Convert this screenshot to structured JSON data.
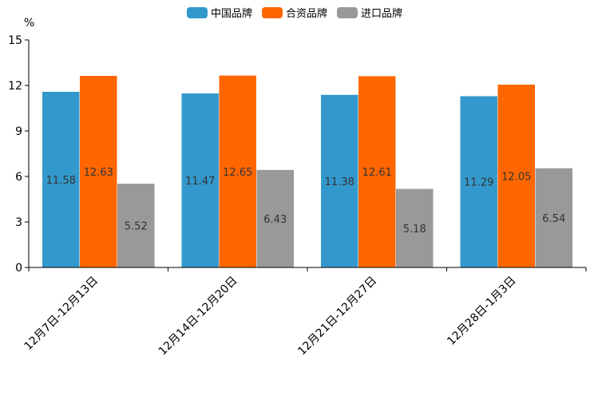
{
  "chart_data": {
    "type": "bar",
    "title": "",
    "xlabel": "",
    "ylabel": "%",
    "ylim": [
      0,
      15
    ],
    "yticks": [
      0,
      3,
      6,
      9,
      12,
      15
    ],
    "grid": false,
    "legend_position": "top-center",
    "categories": [
      "12月7日-12月13日",
      "12月14日-12月20日",
      "12月21日-12月27日",
      "12月28日-1月3日"
    ],
    "series": [
      {
        "name": "中国品牌",
        "color": "#3399CC",
        "values": [
          11.58,
          11.47,
          11.38,
          11.29
        ],
        "labels": [
          "11.58",
          "11.47",
          "11.38",
          "11.29"
        ]
      },
      {
        "name": "合资品牌",
        "color": "#FF6600",
        "values": [
          12.63,
          12.65,
          12.61,
          12.05
        ],
        "labels": [
          "12.63",
          "12.65",
          "12.61",
          "12.05"
        ]
      },
      {
        "name": "进口品牌",
        "color": "#999999",
        "values": [
          5.52,
          6.43,
          5.18,
          6.54
        ],
        "labels": [
          "5.52",
          "6.43",
          "5.18",
          "6.54"
        ]
      }
    ]
  }
}
